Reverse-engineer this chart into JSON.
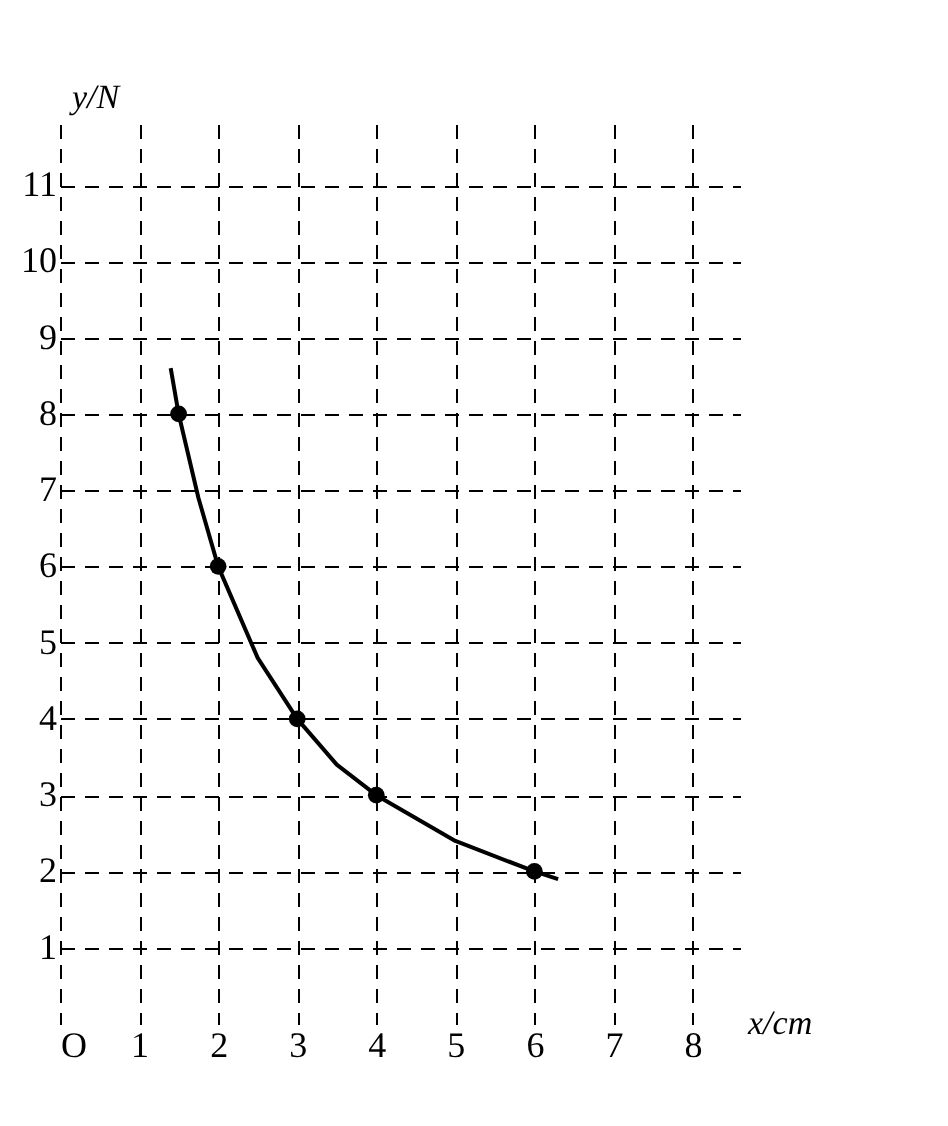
{
  "chart_data": {
    "type": "scatter",
    "xlabel": "x/cm",
    "ylabel": "y/N",
    "xlim": [
      0,
      8.6
    ],
    "ylim": [
      0,
      11.8
    ],
    "xticks": [
      {
        "value": 0,
        "label": "O"
      },
      1,
      2,
      3,
      4,
      5,
      6,
      7,
      8
    ],
    "yticks": [
      1,
      2,
      3,
      4,
      5,
      6,
      7,
      8,
      9,
      10,
      11
    ],
    "grid": true,
    "marker": "circle",
    "series": [
      {
        "type": "line",
        "color": "#000000",
        "line_style": "solid",
        "marker": "none",
        "x": [
          1.4,
          1.5,
          1.75,
          2,
          2.5,
          3,
          3.5,
          4,
          5,
          6,
          6.3
        ],
        "values": [
          8.6,
          8,
          6.9,
          6,
          4.8,
          4,
          3.4,
          3,
          2.4,
          2,
          1.9
        ]
      },
      {
        "color": "#000000",
        "x": [
          1.5,
          2,
          3,
          4,
          6
        ],
        "values": [
          8,
          6,
          4,
          3,
          2
        ]
      }
    ]
  }
}
